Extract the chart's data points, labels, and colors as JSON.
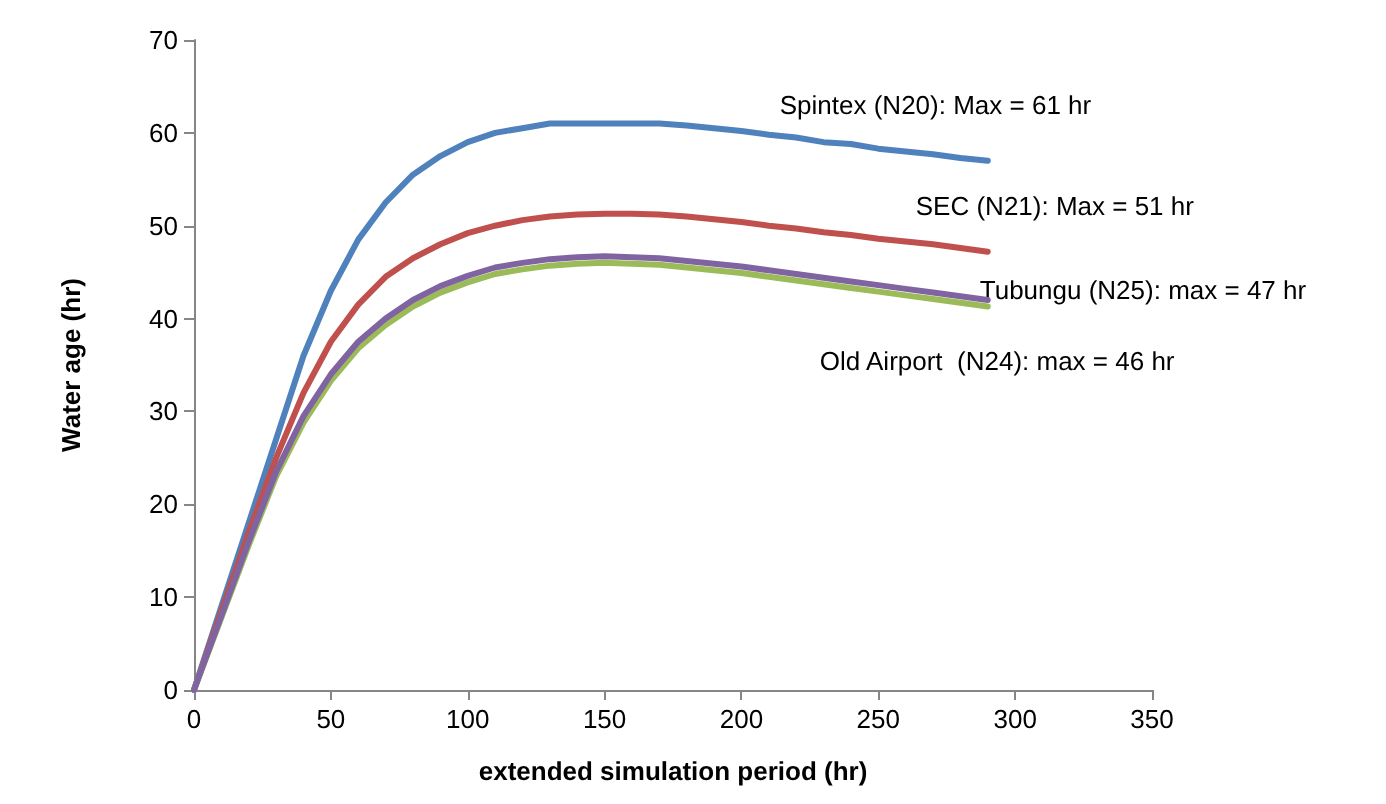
{
  "chart_data": {
    "type": "line",
    "xlabel": "extended simulation period (hr)",
    "ylabel": "Water age (hr)",
    "x": [
      0,
      10,
      20,
      30,
      40,
      50,
      60,
      70,
      80,
      90,
      100,
      110,
      120,
      130,
      140,
      150,
      160,
      170,
      180,
      190,
      200,
      210,
      220,
      230,
      240,
      250,
      260,
      270,
      280,
      290
    ],
    "series": [
      {
        "name": "Spintex (N20): Max = 61 hr",
        "color": "#4f81bd",
        "values": [
          0,
          9,
          18,
          27,
          36,
          43,
          48.5,
          52.5,
          55.5,
          57.5,
          59,
          60,
          60.5,
          61,
          61,
          61,
          61,
          61,
          60.8,
          60.5,
          60.2,
          59.8,
          59.5,
          59,
          58.8,
          58.3,
          58,
          57.7,
          57.3,
          57
        ]
      },
      {
        "name": "SEC (N21): Max = 51 hr",
        "color": "#c0504d",
        "values": [
          0,
          8.5,
          17,
          25,
          32,
          37.5,
          41.5,
          44.5,
          46.5,
          48,
          49.2,
          50,
          50.6,
          51,
          51.2,
          51.3,
          51.3,
          51.2,
          51,
          50.7,
          50.4,
          50,
          49.7,
          49.3,
          49,
          48.6,
          48.3,
          48,
          47.6,
          47.2
        ]
      },
      {
        "name": "Old Airport  (N24): max = 46 hr",
        "color": "#9bbb59",
        "values": [
          0,
          7.8,
          15.6,
          23,
          28.8,
          33.3,
          36.8,
          39.3,
          41.3,
          42.8,
          43.9,
          44.8,
          45.3,
          45.7,
          45.9,
          46,
          45.9,
          45.8,
          45.5,
          45.2,
          44.9,
          44.5,
          44.1,
          43.7,
          43.3,
          42.9,
          42.5,
          42.1,
          41.7,
          41.3
        ]
      },
      {
        "name": "Tubungu (N25): max = 47 hr",
        "color": "#8064a2",
        "values": [
          0,
          8,
          16,
          23.5,
          29.5,
          34,
          37.5,
          40,
          42,
          43.5,
          44.6,
          45.5,
          46,
          46.4,
          46.6,
          46.7,
          46.6,
          46.5,
          46.2,
          45.9,
          45.6,
          45.2,
          44.8,
          44.4,
          44,
          43.6,
          43.2,
          42.8,
          42.4,
          42
        ]
      }
    ],
    "xlim": [
      0,
      350
    ],
    "xticks": [
      0,
      50,
      100,
      150,
      200,
      250,
      300,
      350
    ],
    "ylim": [
      0,
      70
    ],
    "yticks": [
      0,
      10,
      20,
      30,
      40,
      50,
      60,
      70
    ],
    "grid": false,
    "marker": "none",
    "line_style": "solid"
  }
}
